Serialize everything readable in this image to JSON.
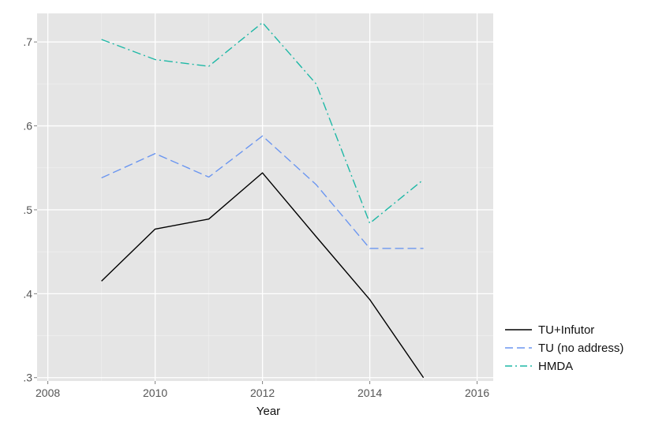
{
  "chart_data": {
    "type": "line",
    "xlabel": "Year",
    "ylabel": "",
    "xlim": [
      2007.8,
      2016.3
    ],
    "ylim": [
      0.296,
      0.734
    ],
    "x_ticks": [
      2008,
      2010,
      2012,
      2014,
      2016
    ],
    "x_tick_labels": [
      "2008",
      "2010",
      "2012",
      "2014",
      "2016"
    ],
    "y_ticks": [
      0.3,
      0.4,
      0.5,
      0.6,
      0.7
    ],
    "y_tick_labels": [
      ".3",
      ".4",
      ".5",
      ".6",
      ".7"
    ],
    "x_minor_gridlines": [
      2009,
      2011,
      2013,
      2015
    ],
    "y_minor_gridlines": [
      0.35,
      0.45,
      0.55,
      0.65
    ],
    "grid": true,
    "legend_position": "right",
    "series": [
      {
        "name": "TU+Infutor",
        "color": "#000000",
        "dash": "solid",
        "x": [
          2009,
          2010,
          2011,
          2012,
          2013,
          2014,
          2015
        ],
        "y": [
          0.415,
          0.477,
          0.489,
          0.544,
          0.468,
          0.393,
          0.3
        ]
      },
      {
        "name": "TU (no address)",
        "color": "#6b96f0",
        "dash": "dashed",
        "x": [
          2009,
          2010,
          2011,
          2012,
          2013,
          2014,
          2015
        ],
        "y": [
          0.538,
          0.567,
          0.539,
          0.588,
          0.53,
          0.454,
          0.454
        ]
      },
      {
        "name": "HMDA",
        "color": "#1fb8a6",
        "dash": "dashdot",
        "x": [
          2009,
          2010,
          2011,
          2012,
          2013,
          2014,
          2015
        ],
        "y": [
          0.703,
          0.679,
          0.671,
          0.723,
          0.65,
          0.484,
          0.536
        ]
      }
    ]
  }
}
